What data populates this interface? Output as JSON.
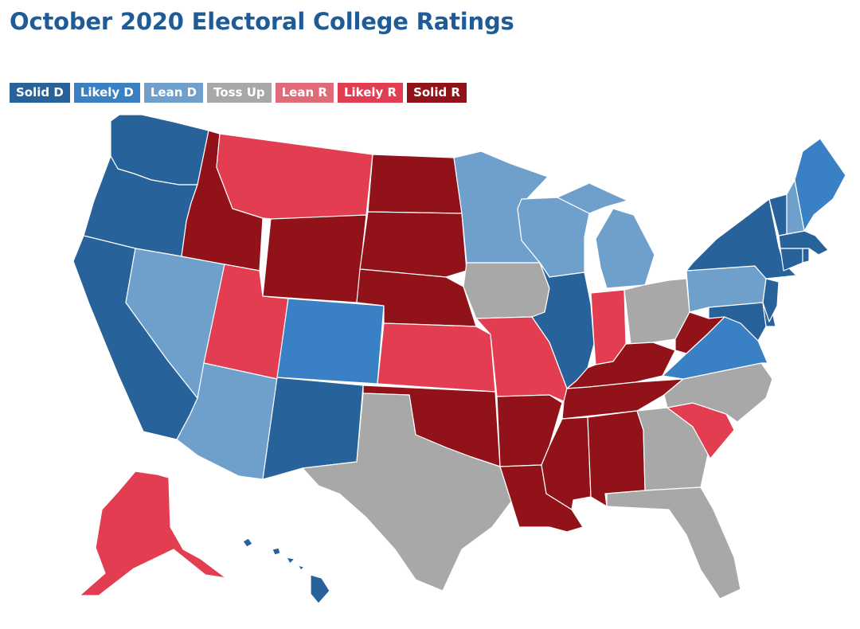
{
  "title": "October 2020 Electoral College Ratings",
  "legend": [
    {
      "key": "solid_d",
      "label": "Solid D",
      "color": "#28629a"
    },
    {
      "key": "likely_d",
      "label": "Likely D",
      "color": "#3a80c4"
    },
    {
      "key": "lean_d",
      "label": "Lean D",
      "color": "#6fa0cc"
    },
    {
      "key": "toss_up",
      "label": "Toss Up",
      "color": "#a8a8a8"
    },
    {
      "key": "lean_r",
      "label": "Lean R",
      "color": "#e06a78"
    },
    {
      "key": "likely_r",
      "label": "Likely R",
      "color": "#e23d50"
    },
    {
      "key": "solid_r",
      "label": "Solid R",
      "color": "#921219"
    }
  ],
  "states": [
    {
      "name": "Washington",
      "abbr": "WA",
      "rating": "solid_d"
    },
    {
      "name": "Oregon",
      "abbr": "OR",
      "rating": "solid_d"
    },
    {
      "name": "California",
      "abbr": "CA",
      "rating": "solid_d"
    },
    {
      "name": "Nevada",
      "abbr": "NV",
      "rating": "lean_d"
    },
    {
      "name": "Idaho",
      "abbr": "ID",
      "rating": "solid_r"
    },
    {
      "name": "Montana",
      "abbr": "MT",
      "rating": "likely_r"
    },
    {
      "name": "Wyoming",
      "abbr": "WY",
      "rating": "solid_r"
    },
    {
      "name": "Utah",
      "abbr": "UT",
      "rating": "likely_r"
    },
    {
      "name": "Arizona",
      "abbr": "AZ",
      "rating": "lean_d"
    },
    {
      "name": "Colorado",
      "abbr": "CO",
      "rating": "likely_d"
    },
    {
      "name": "New Mexico",
      "abbr": "NM",
      "rating": "solid_d"
    },
    {
      "name": "North Dakota",
      "abbr": "ND",
      "rating": "solid_r"
    },
    {
      "name": "South Dakota",
      "abbr": "SD",
      "rating": "solid_r"
    },
    {
      "name": "Nebraska",
      "abbr": "NE",
      "rating": "solid_r"
    },
    {
      "name": "Kansas",
      "abbr": "KS",
      "rating": "likely_r"
    },
    {
      "name": "Oklahoma",
      "abbr": "OK",
      "rating": "solid_r"
    },
    {
      "name": "Texas",
      "abbr": "TX",
      "rating": "toss_up"
    },
    {
      "name": "Minnesota",
      "abbr": "MN",
      "rating": "lean_d"
    },
    {
      "name": "Iowa",
      "abbr": "IA",
      "rating": "toss_up"
    },
    {
      "name": "Missouri",
      "abbr": "MO",
      "rating": "likely_r"
    },
    {
      "name": "Arkansas",
      "abbr": "AR",
      "rating": "solid_r"
    },
    {
      "name": "Louisiana",
      "abbr": "LA",
      "rating": "solid_r"
    },
    {
      "name": "Wisconsin",
      "abbr": "WI",
      "rating": "lean_d"
    },
    {
      "name": "Illinois",
      "abbr": "IL",
      "rating": "solid_d"
    },
    {
      "name": "Michigan",
      "abbr": "MI",
      "rating": "lean_d"
    },
    {
      "name": "Indiana",
      "abbr": "IN",
      "rating": "likely_r"
    },
    {
      "name": "Ohio",
      "abbr": "OH",
      "rating": "toss_up"
    },
    {
      "name": "Kentucky",
      "abbr": "KY",
      "rating": "solid_r"
    },
    {
      "name": "Tennessee",
      "abbr": "TN",
      "rating": "solid_r"
    },
    {
      "name": "Mississippi",
      "abbr": "MS",
      "rating": "solid_r"
    },
    {
      "name": "Alabama",
      "abbr": "AL",
      "rating": "solid_r"
    },
    {
      "name": "Georgia",
      "abbr": "GA",
      "rating": "toss_up"
    },
    {
      "name": "Florida",
      "abbr": "FL",
      "rating": "toss_up"
    },
    {
      "name": "South Carolina",
      "abbr": "SC",
      "rating": "likely_r"
    },
    {
      "name": "North Carolina",
      "abbr": "NC",
      "rating": "toss_up"
    },
    {
      "name": "Virginia",
      "abbr": "VA",
      "rating": "likely_d"
    },
    {
      "name": "West Virginia",
      "abbr": "WV",
      "rating": "solid_r"
    },
    {
      "name": "Pennsylvania",
      "abbr": "PA",
      "rating": "lean_d"
    },
    {
      "name": "New York",
      "abbr": "NY",
      "rating": "solid_d"
    },
    {
      "name": "Maryland",
      "abbr": "MD",
      "rating": "solid_d"
    },
    {
      "name": "Delaware",
      "abbr": "DE",
      "rating": "solid_d"
    },
    {
      "name": "New Jersey",
      "abbr": "NJ",
      "rating": "solid_d"
    },
    {
      "name": "Connecticut",
      "abbr": "CT",
      "rating": "solid_d"
    },
    {
      "name": "Rhode Island",
      "abbr": "RI",
      "rating": "solid_d"
    },
    {
      "name": "Massachusetts",
      "abbr": "MA",
      "rating": "solid_d"
    },
    {
      "name": "Vermont",
      "abbr": "VT",
      "rating": "solid_d"
    },
    {
      "name": "New Hampshire",
      "abbr": "NH",
      "rating": "lean_d"
    },
    {
      "name": "Maine",
      "abbr": "ME",
      "rating": "likely_d"
    },
    {
      "name": "Alaska",
      "abbr": "AK",
      "rating": "likely_r"
    },
    {
      "name": "Hawaii",
      "abbr": "HI",
      "rating": "solid_d"
    }
  ]
}
